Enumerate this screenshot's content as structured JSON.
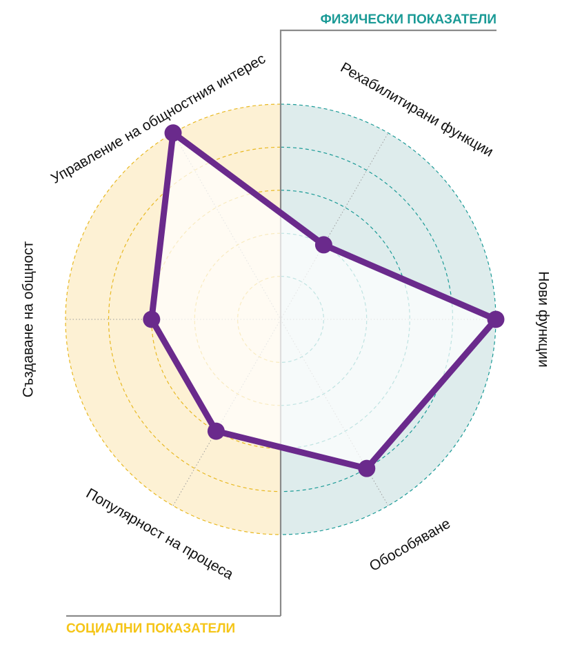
{
  "chart_data": {
    "type": "radar",
    "title": "",
    "axes": [
      "Нови функции",
      "Обособяване",
      "Популярност на процеса",
      "Създаване на общност",
      "Управление на общностния интерес",
      "Рехабилитирани функции"
    ],
    "series": [
      {
        "values": [
          5.0,
          4.0,
          3.0,
          3.0,
          5.0,
          2.0
        ]
      }
    ],
    "rmax": 5,
    "rings": [
      1,
      2,
      3,
      4,
      5
    ],
    "grid": true,
    "groups": [
      {
        "name": "ФИЗИЧЕСКИ ПОКАЗАТЕЛИ",
        "side": "right",
        "color": "#1a9a96",
        "fill": "#deecec"
      },
      {
        "name": "СОЦИАЛНИ ПОКАЗАТЕЛИ",
        "side": "left",
        "color": "#f5c518",
        "fill": "#fdf1d4"
      }
    ],
    "line_color": "#6a2a8c",
    "area_color": "#ffffff"
  }
}
